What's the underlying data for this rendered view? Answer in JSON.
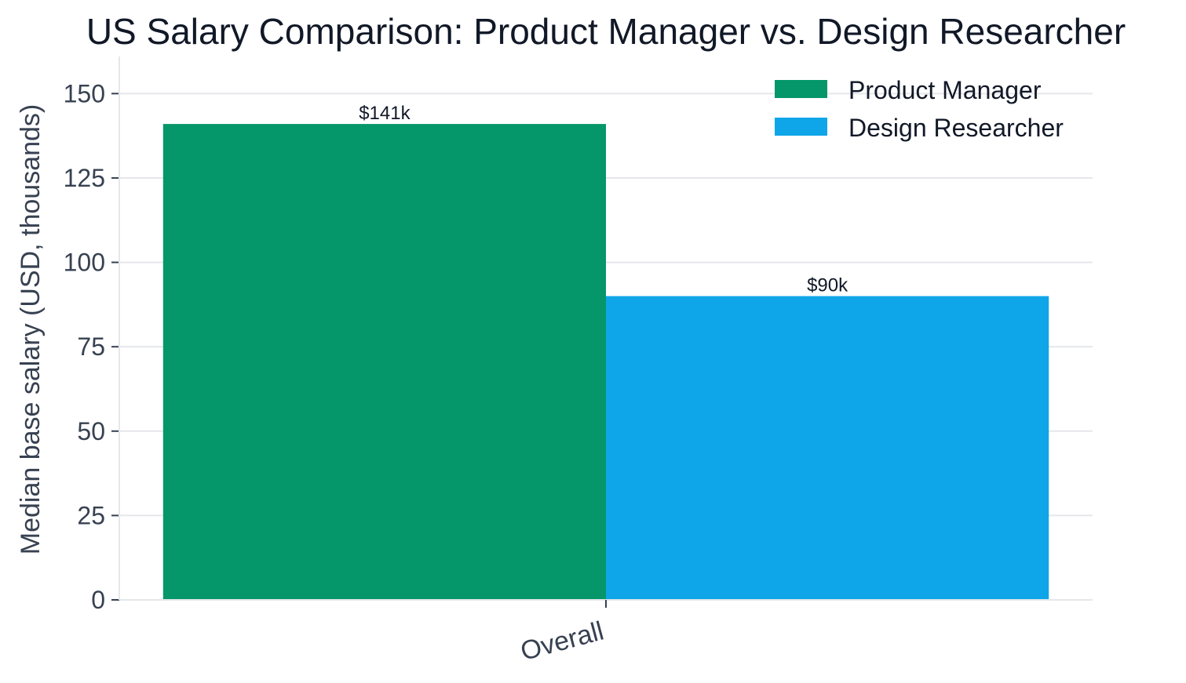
{
  "chart_data": {
    "type": "bar",
    "title": "US Salary Comparison: Product Manager vs. Design Researcher",
    "xlabel": "",
    "ylabel": "Median base salary (USD, thousands)",
    "categories": [
      "Overall"
    ],
    "series": [
      {
        "name": "Product Manager",
        "values": [
          141
        ],
        "color": "#059669",
        "data_label": "$141k"
      },
      {
        "name": "Design Researcher",
        "values": [
          90
        ],
        "color": "#0ea5e9",
        "data_label": "$90k"
      }
    ],
    "ylim": [
      0,
      161
    ],
    "yticks": [
      0,
      25,
      50,
      75,
      100,
      125,
      150
    ],
    "grid": true,
    "legend_position": "top-right"
  }
}
